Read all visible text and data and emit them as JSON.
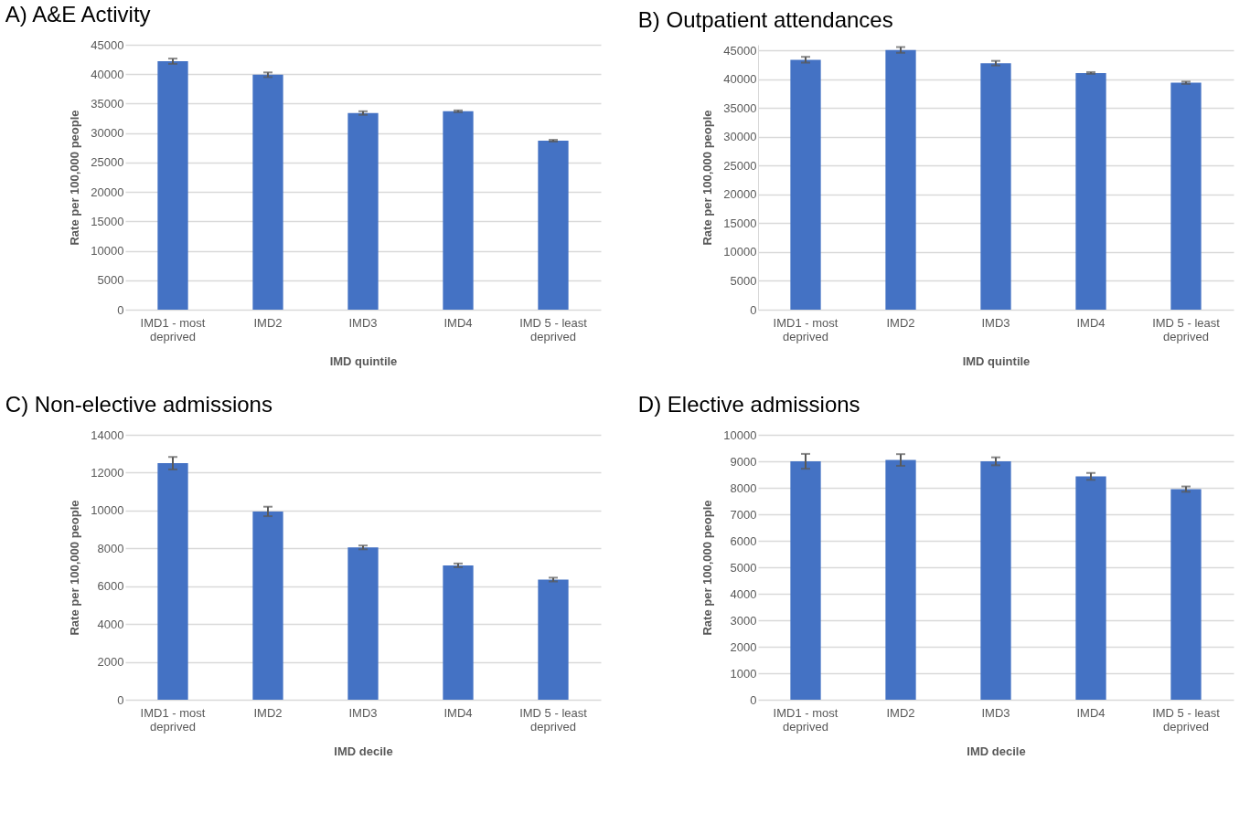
{
  "chart_data": [
    {
      "type": "bar",
      "title": "A) A&E Activity",
      "xlabel": "IMD quintile",
      "ylabel": "Rate per 100,000 people",
      "categories": [
        "IMD1 - most deprived",
        "IMD2",
        "IMD3",
        "IMD4",
        "IMD 5 - least deprived"
      ],
      "values": [
        42200,
        39900,
        33400,
        33700,
        28700
      ],
      "errors": [
        450,
        400,
        300,
        150,
        150
      ],
      "color": "#4472c4",
      "ylim": [
        0,
        45000
      ],
      "yticks": [
        0,
        5000,
        10000,
        15000,
        20000,
        25000,
        30000,
        35000,
        40000,
        45000
      ],
      "grid": "y"
    },
    {
      "type": "bar",
      "title": "B) Outpatient attendances",
      "xlabel": "IMD quintile",
      "ylabel": "Rate per 100,000 people",
      "categories": [
        "IMD1 - most deprived",
        "IMD2",
        "IMD3",
        "IMD4",
        "IMD 5 - least deprived"
      ],
      "values": [
        43400,
        45100,
        42800,
        41100,
        39400
      ],
      "errors": [
        500,
        500,
        400,
        150,
        200
      ],
      "color": "#4472c4",
      "ylim": [
        0,
        46000
      ],
      "yticks": [
        0,
        5000,
        10000,
        15000,
        20000,
        25000,
        30000,
        35000,
        40000,
        45000
      ],
      "grid": "y"
    },
    {
      "type": "bar",
      "title": "C) Non-elective admissions",
      "xlabel": "IMD decile",
      "ylabel": "Rate per 100,000 people",
      "categories": [
        "IMD1 - most deprived",
        "IMD2",
        "IMD3",
        "IMD4",
        "IMD 5 - least deprived"
      ],
      "values": [
        12500,
        9950,
        8050,
        7100,
        6350
      ],
      "errors": [
        330,
        250,
        100,
        100,
        100
      ],
      "color": "#4472c4",
      "ylim": [
        0,
        14000
      ],
      "yticks": [
        0,
        2000,
        4000,
        6000,
        8000,
        10000,
        12000,
        14000
      ],
      "grid": "y"
    },
    {
      "type": "bar",
      "title": "D) Elective admissions",
      "xlabel": "IMD decile",
      "ylabel": "Rate per 100,000 people",
      "categories": [
        "IMD1 - most deprived",
        "IMD2",
        "IMD3",
        "IMD4",
        "IMD 5 - least deprived"
      ],
      "values": [
        9000,
        9050,
        9000,
        8430,
        7950
      ],
      "errors": [
        280,
        220,
        150,
        130,
        100
      ],
      "color": "#4472c4",
      "ylim": [
        0,
        10000
      ],
      "yticks": [
        0,
        1000,
        2000,
        3000,
        4000,
        5000,
        6000,
        7000,
        8000,
        9000,
        10000
      ],
      "grid": "y"
    }
  ]
}
